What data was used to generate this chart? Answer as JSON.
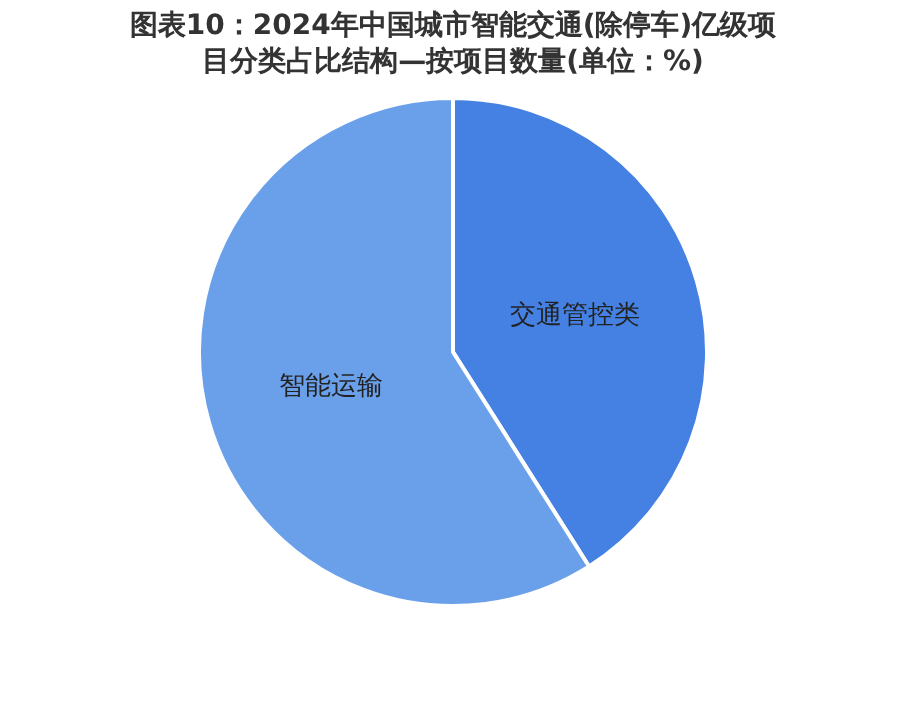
{
  "chart_data": {
    "type": "pie",
    "title": "图表10：2024年中国城市智能交通(除停车)亿级项目分类占比结构—按项目数量(单位：%)",
    "categories": [
      "交通管控类",
      "智能运输"
    ],
    "values": [
      41,
      59
    ],
    "colors": [
      "#4481e3",
      "#6aa0ea"
    ]
  }
}
